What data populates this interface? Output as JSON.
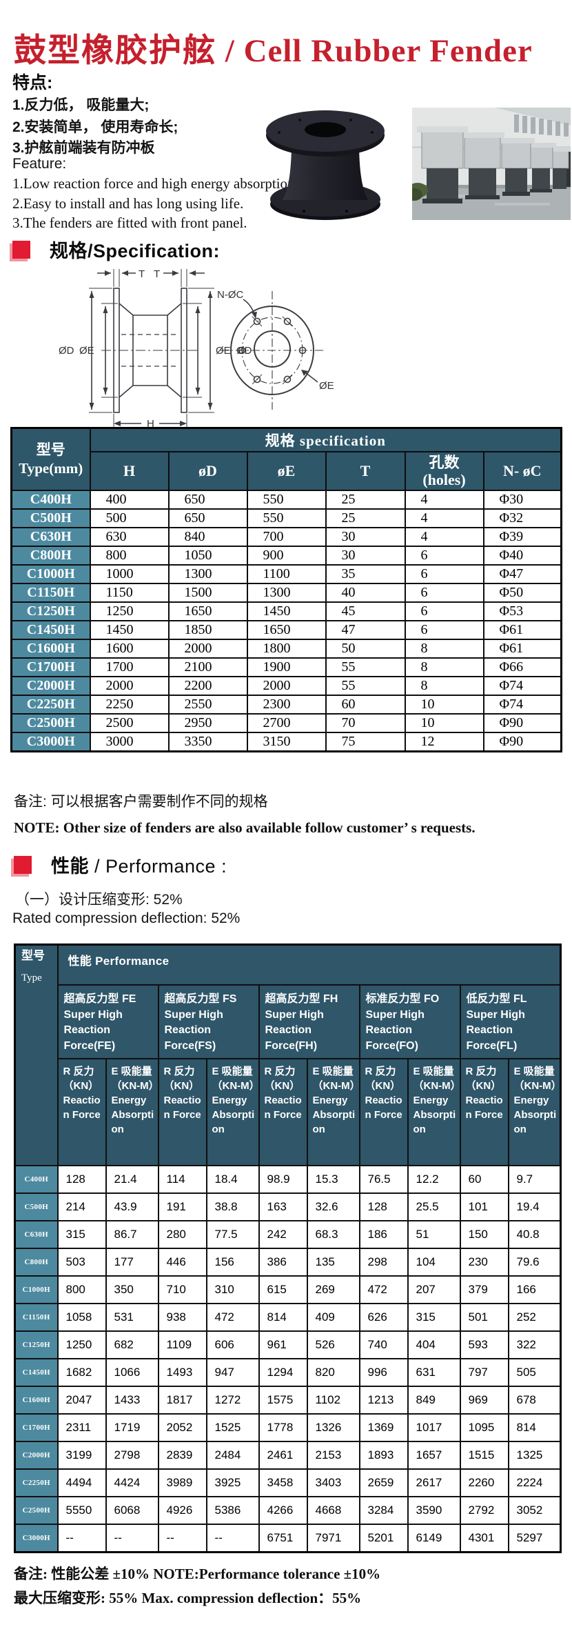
{
  "page": {
    "colors": {
      "accent_red": "#c5202d",
      "bullet_red": "#e11b31",
      "table_header_teal": "#2e5769",
      "row_label_teal": "#4d8aa0"
    },
    "title_zh": "鼓型橡胶护舷",
    "title_sep": " / ",
    "title_en": "Cell Rubber Fender"
  },
  "features": {
    "heading": "特点:",
    "items_zh": [
      "1.反力低， 吸能量大;",
      "2.安装简单，  使用寿命长;",
      "3.护舷前端装有防冲板"
    ],
    "feature_label": "Feature:",
    "items_en": [
      "1.Low reaction force and high energy absorption",
      "2.Easy to install and has long using life.",
      "3.The fenders are fitted with front panel."
    ]
  },
  "spec_section": {
    "heading": "规格/Specification:",
    "drawing": {
      "t_left": "T",
      "t_right": "T",
      "od_left": "ØD",
      "oe_left": "ØE",
      "oe_right": "ØE",
      "od_right": "ØD",
      "h": "H",
      "n_oc": "N-ØC",
      "oe_front": "ØE"
    }
  },
  "spec_table": {
    "col0_header_zh": "型号",
    "col0_header_en": "Type(mm)",
    "group_header": "规格  specification",
    "columns": [
      "H",
      "øD",
      "øE",
      "T",
      "孔数\n(holes)",
      "N- øC"
    ],
    "rows": [
      {
        "type": "C400H",
        "values": [
          "400",
          "650",
          "550",
          "25",
          "4",
          "Φ30"
        ]
      },
      {
        "type": "C500H",
        "values": [
          "500",
          "650",
          "550",
          "25",
          "4",
          "Φ32"
        ]
      },
      {
        "type": "C630H",
        "values": [
          "630",
          "840",
          "700",
          "30",
          "4",
          "Φ39"
        ]
      },
      {
        "type": "C800H",
        "values": [
          "800",
          "1050",
          "900",
          "30",
          "6",
          "Φ40"
        ]
      },
      {
        "type": "C1000H",
        "values": [
          "1000",
          "1300",
          "1100",
          "35",
          "6",
          "Φ47"
        ]
      },
      {
        "type": "C1150H",
        "values": [
          "1150",
          "1500",
          "1300",
          "40",
          "6",
          "Φ50"
        ]
      },
      {
        "type": "C1250H",
        "values": [
          "1250",
          "1650",
          "1450",
          "45",
          "6",
          "Φ53"
        ]
      },
      {
        "type": "C1450H",
        "values": [
          "1450",
          "1850",
          "1650",
          "47",
          "6",
          "Φ61"
        ]
      },
      {
        "type": "C1600H",
        "values": [
          "1600",
          "2000",
          "1800",
          "50",
          "8",
          "Φ61"
        ]
      },
      {
        "type": "C1700H",
        "values": [
          "1700",
          "2100",
          "1900",
          "55",
          "8",
          "Φ66"
        ]
      },
      {
        "type": "C2000H",
        "values": [
          "2000",
          "2200",
          "2000",
          "55",
          "8",
          "Φ74"
        ]
      },
      {
        "type": "C2250H",
        "values": [
          "2250",
          "2550",
          "2300",
          "60",
          "10",
          "Φ74"
        ]
      },
      {
        "type": "C2500H",
        "values": [
          "2500",
          "2950",
          "2700",
          "70",
          "10",
          "Φ90"
        ]
      },
      {
        "type": "C3000H",
        "values": [
          "3000",
          "3350",
          "3150",
          "75",
          "12",
          "Φ90"
        ]
      }
    ],
    "note_zh": "备注:  可以根据客户需要制作不同的规格",
    "note_en": "NOTE: Other size of fenders are also available follow customer’ s requests."
  },
  "performance_section": {
    "heading_zh": "性能",
    "heading_rest": " / Performance :",
    "line1": "（一）设计压缩变形:  52%",
    "line2": "Rated compression deflection:  52%"
  },
  "performance_table": {
    "top_header": "性能  Performance",
    "col0_header_zh": "型号",
    "col0_header_en": "Type",
    "groups": [
      {
        "zh": "超高反力型 FE",
        "en": "Super High Reaction Force(FE)"
      },
      {
        "zh": "超高反力型 FS",
        "en": "Super High Reaction Force(FS)"
      },
      {
        "zh": "超高反力型 FH",
        "en": "Super High Reaction Force(FH)"
      },
      {
        "zh": "标准反力型 FO",
        "en": "Super High Reaction Force(FO)"
      },
      {
        "zh": "低反力型 FL",
        "en": "Super High Reaction Force(FL)"
      }
    ],
    "r_header": {
      "zh": "R 反力",
      "unit": "（KN）",
      "en": "Reaction Force"
    },
    "e_header": {
      "zh": "E 吸能量",
      "unit": "（KN-M）",
      "en": "Energy Absorption"
    },
    "rows": [
      {
        "type": "C400H",
        "values": [
          "128",
          "21.4",
          "114",
          "18.4",
          "98.9",
          "15.3",
          "76.5",
          "12.2",
          "60",
          "9.7"
        ]
      },
      {
        "type": "C500H",
        "values": [
          "214",
          "43.9",
          "191",
          "38.8",
          "163",
          "32.6",
          "128",
          "25.5",
          "101",
          "19.4"
        ]
      },
      {
        "type": "C630H",
        "values": [
          "315",
          "86.7",
          "280",
          "77.5",
          "242",
          "68.3",
          "186",
          "51",
          "150",
          "40.8"
        ]
      },
      {
        "type": "C800H",
        "values": [
          "503",
          "177",
          "446",
          "156",
          "386",
          "135",
          "298",
          "104",
          "230",
          "79.6"
        ]
      },
      {
        "type": "C1000H",
        "values": [
          "800",
          "350",
          "710",
          "310",
          "615",
          "269",
          "472",
          "207",
          "379",
          "166"
        ]
      },
      {
        "type": "C1150H",
        "values": [
          "1058",
          "531",
          "938",
          "472",
          "814",
          "409",
          "626",
          "315",
          "501",
          "252"
        ]
      },
      {
        "type": "C1250H",
        "values": [
          "1250",
          "682",
          "1109",
          "606",
          "961",
          "526",
          "740",
          "404",
          "593",
          "322"
        ]
      },
      {
        "type": "C1450H",
        "values": [
          "1682",
          "1066",
          "1493",
          "947",
          "1294",
          "820",
          "996",
          "631",
          "797",
          "505"
        ]
      },
      {
        "type": "C1600H",
        "values": [
          "2047",
          "1433",
          "1817",
          "1272",
          "1575",
          "1102",
          "1213",
          "849",
          "969",
          "678"
        ]
      },
      {
        "type": "C1700H",
        "values": [
          "2311",
          "1719",
          "2052",
          "1525",
          "1778",
          "1326",
          "1369",
          "1017",
          "1095",
          "814"
        ]
      },
      {
        "type": "C2000H",
        "values": [
          "3199",
          "2798",
          "2839",
          "2484",
          "2461",
          "2153",
          "1893",
          "1657",
          "1515",
          "1325"
        ]
      },
      {
        "type": "C2250H",
        "values": [
          "4494",
          "4424",
          "3989",
          "3925",
          "3458",
          "3403",
          "2659",
          "2617",
          "2260",
          "2224"
        ]
      },
      {
        "type": "C2500H",
        "values": [
          "5550",
          "6068",
          "4926",
          "5386",
          "4266",
          "4668",
          "3284",
          "3590",
          "2792",
          "3052"
        ]
      },
      {
        "type": "C3000H",
        "values": [
          "--",
          "--",
          "--",
          "--",
          "6751",
          "7971",
          "5201",
          "6149",
          "4301",
          "5297"
        ]
      }
    ],
    "foot1": "备注:  性能公差 ±10%  NOTE:Performance tolerance ±10%",
    "foot2": "最大压缩变形:  55%   Max. compression deflection：55%"
  }
}
